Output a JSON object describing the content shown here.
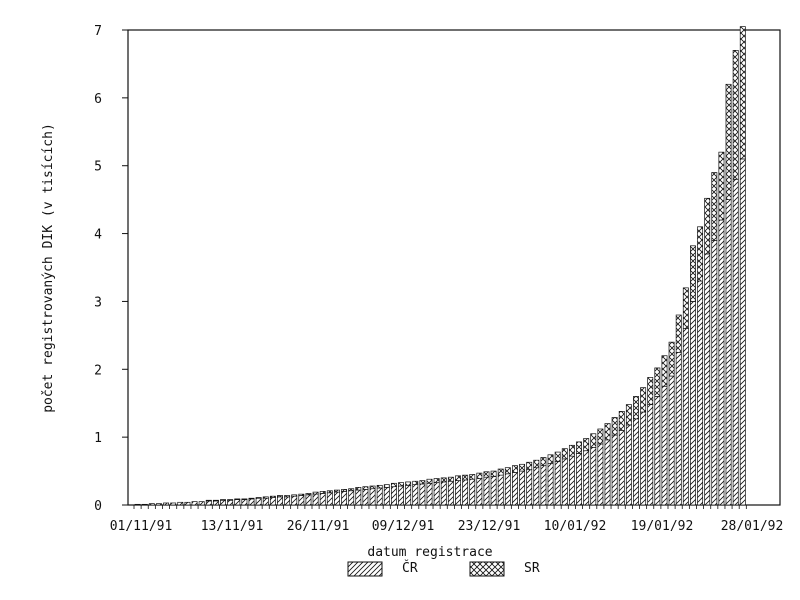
{
  "chart_data": {
    "type": "bar",
    "stacked": true,
    "xlabel": "datum registrace",
    "ylabel": "počet registrovaných DIK (v tisících)",
    "ylim": [
      0,
      7
    ],
    "yticks": [
      0,
      1,
      2,
      3,
      4,
      5,
      6,
      7
    ],
    "xtick_labels": [
      "01/11/91",
      "13/11/91",
      "26/11/91",
      "09/12/91",
      "23/12/91",
      "10/01/92",
      "19/01/92",
      "28/01/92"
    ],
    "bar_count": 86,
    "grid": false,
    "legend_position": "bottom",
    "series": [
      {
        "name": "ČR",
        "fill": "diagonal-hatch",
        "values": [
          0.01,
          0.01,
          0.02,
          0.02,
          0.03,
          0.03,
          0.04,
          0.04,
          0.05,
          0.05,
          0.06,
          0.06,
          0.07,
          0.07,
          0.08,
          0.08,
          0.09,
          0.1,
          0.1,
          0.11,
          0.12,
          0.12,
          0.13,
          0.14,
          0.15,
          0.16,
          0.17,
          0.18,
          0.19,
          0.2,
          0.21,
          0.22,
          0.23,
          0.24,
          0.25,
          0.26,
          0.27,
          0.28,
          0.29,
          0.3,
          0.31,
          0.32,
          0.33,
          0.34,
          0.35,
          0.36,
          0.37,
          0.38,
          0.39,
          0.41,
          0.42,
          0.44,
          0.46,
          0.48,
          0.5,
          0.52,
          0.55,
          0.58,
          0.61,
          0.64,
          0.68,
          0.72,
          0.76,
          0.8,
          0.85,
          0.9,
          0.96,
          1.03,
          1.1,
          1.18,
          1.27,
          1.37,
          1.48,
          1.6,
          1.75,
          1.9,
          2.25,
          2.6,
          3.0,
          3.3,
          3.7,
          3.9,
          4.2,
          4.5,
          4.8,
          5.1
        ]
      },
      {
        "name": "SR",
        "fill": "cross-hatch",
        "values": [
          0.0,
          0.0,
          0.0,
          0.0,
          0.0,
          0.0,
          0.0,
          0.0,
          0.0,
          0.0,
          0.01,
          0.01,
          0.01,
          0.01,
          0.01,
          0.01,
          0.01,
          0.01,
          0.02,
          0.02,
          0.02,
          0.02,
          0.02,
          0.02,
          0.02,
          0.03,
          0.03,
          0.03,
          0.03,
          0.03,
          0.03,
          0.04,
          0.04,
          0.04,
          0.04,
          0.04,
          0.05,
          0.05,
          0.05,
          0.05,
          0.05,
          0.06,
          0.06,
          0.06,
          0.06,
          0.07,
          0.07,
          0.07,
          0.08,
          0.08,
          0.08,
          0.09,
          0.09,
          0.1,
          0.1,
          0.11,
          0.11,
          0.12,
          0.13,
          0.14,
          0.15,
          0.16,
          0.17,
          0.18,
          0.2,
          0.22,
          0.24,
          0.26,
          0.28,
          0.3,
          0.33,
          0.36,
          0.4,
          0.42,
          0.45,
          0.5,
          0.55,
          0.6,
          0.82,
          0.8,
          0.82,
          1.0,
          1.0,
          1.7,
          1.9,
          1.95
        ]
      }
    ]
  }
}
